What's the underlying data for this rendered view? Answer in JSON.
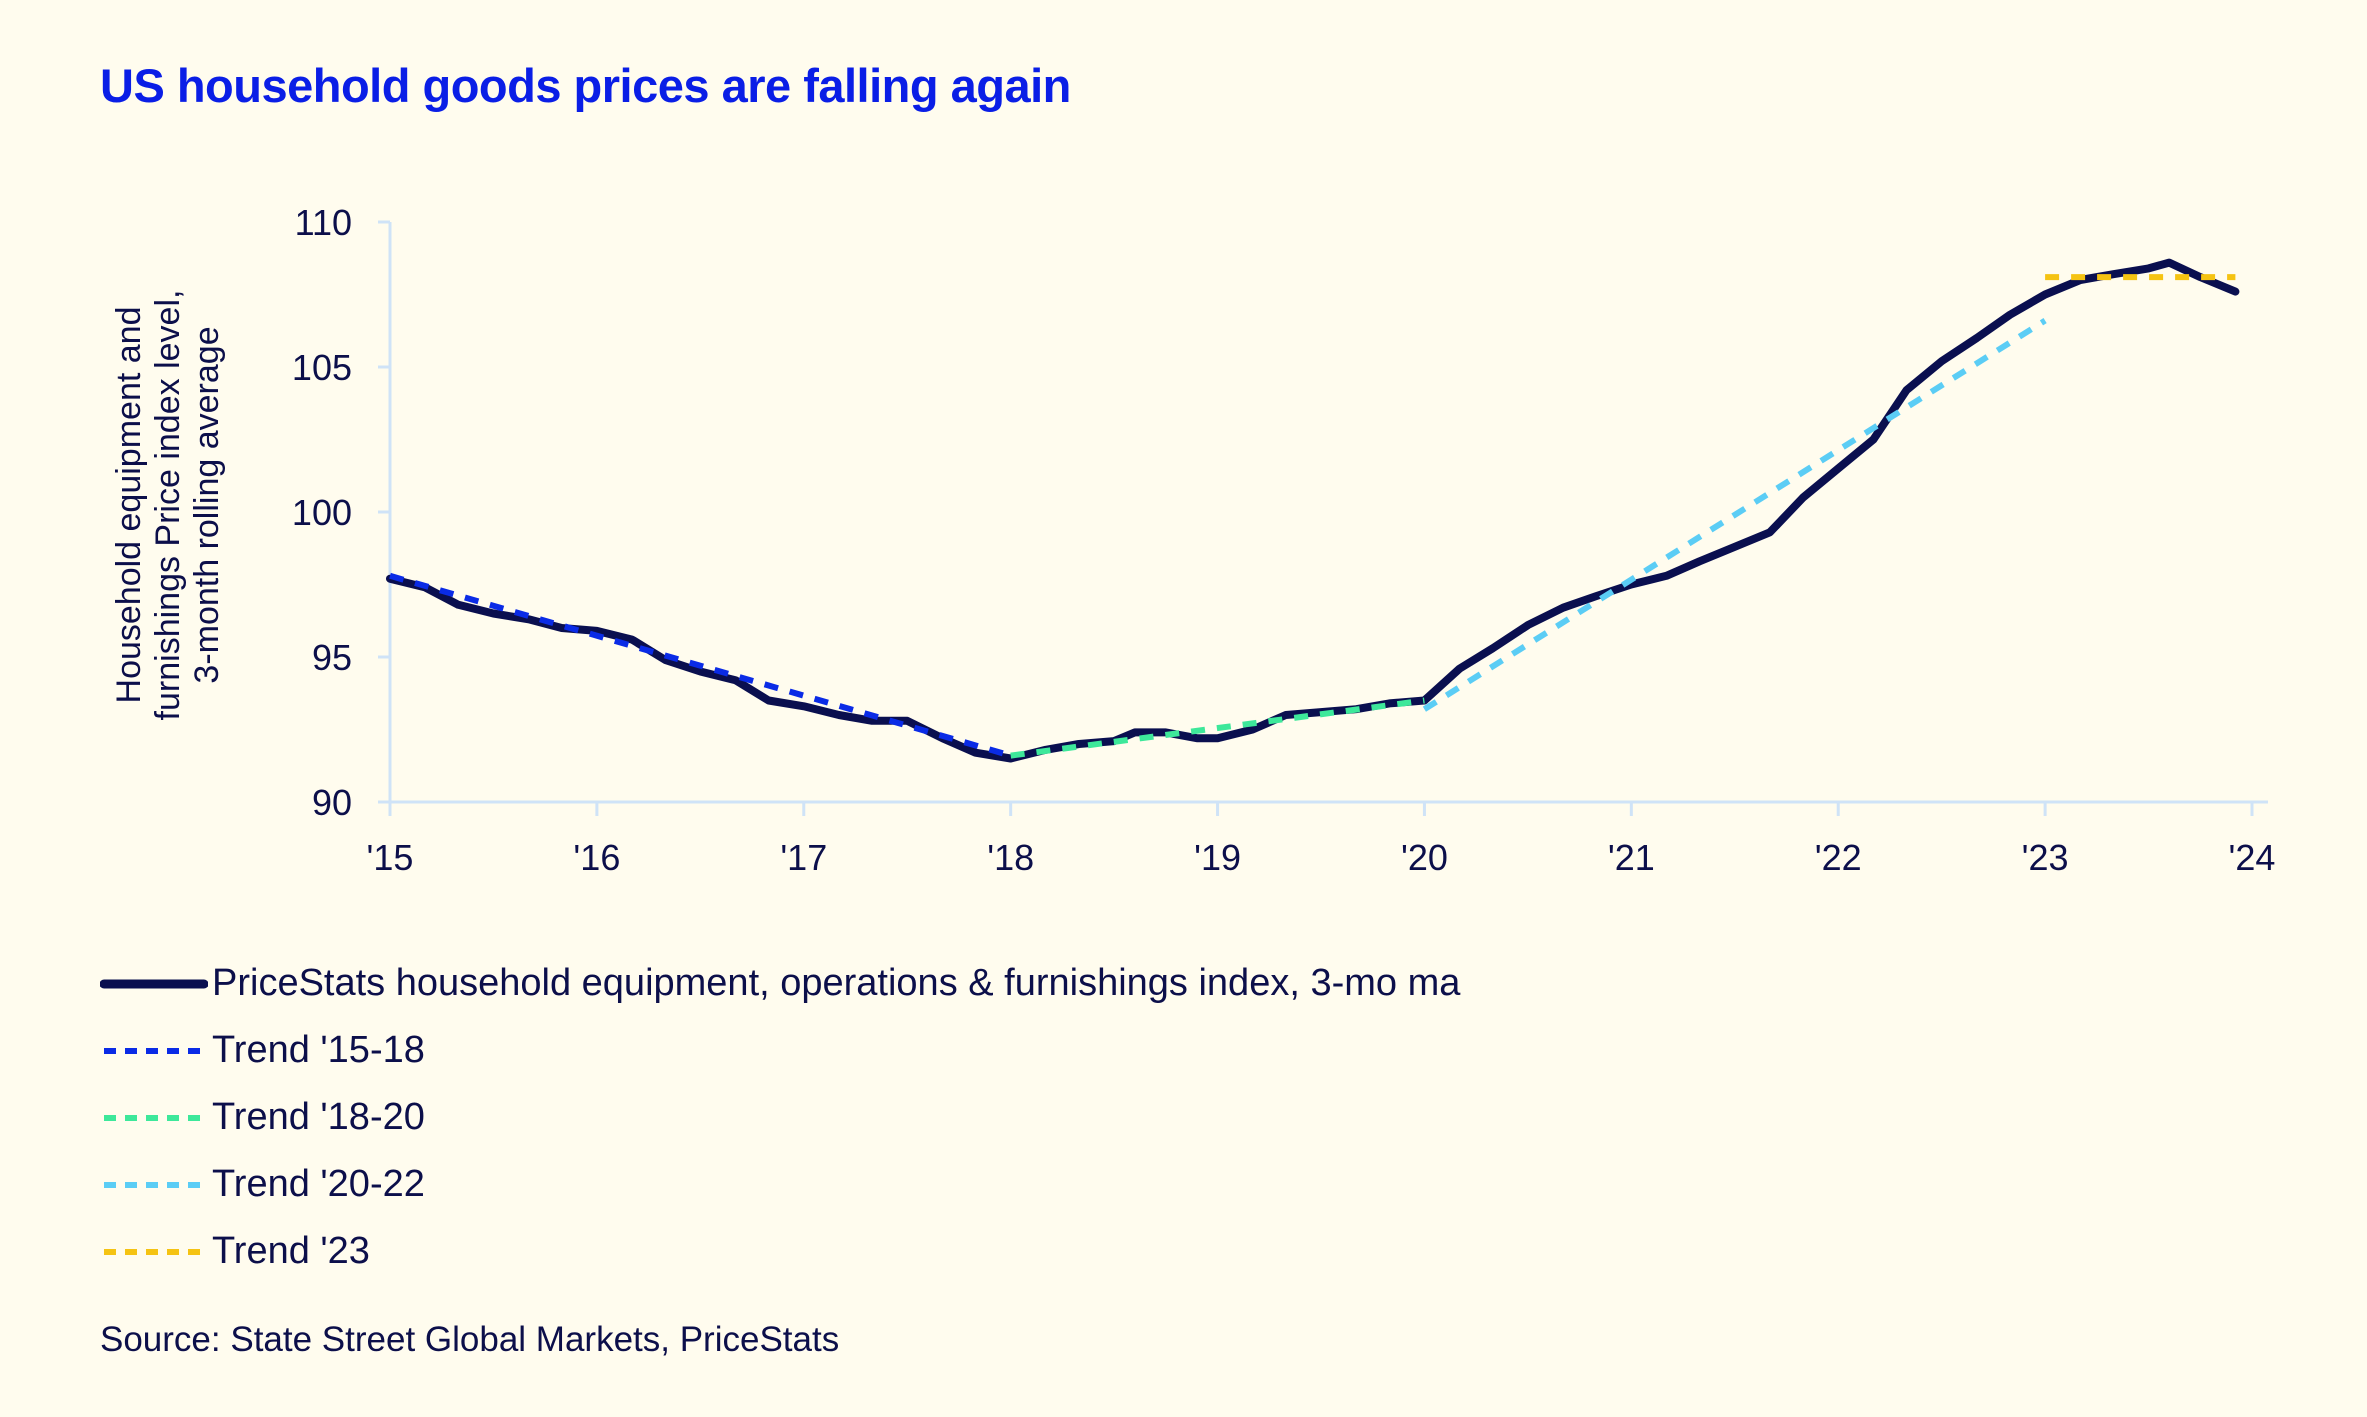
{
  "chart_data": {
    "type": "line",
    "title": "US household goods prices are falling again",
    "xlabel": "",
    "ylabel": "Household equipment and furnishings Price index level, 3-month rolling average",
    "ylabel_lines": [
      "Household equipment and",
      "furnishings Price index level,",
      "3-month rolling average"
    ],
    "xlim": [
      2015,
      2024
    ],
    "ylim": [
      90,
      110
    ],
    "yticks": [
      90,
      95,
      100,
      105,
      110
    ],
    "xticks": [
      2015,
      2016,
      2017,
      2018,
      2019,
      2020,
      2021,
      2022,
      2023,
      2024
    ],
    "xtick_labels": [
      "'15",
      "'16",
      "'17",
      "'18",
      "'19",
      "'20",
      "'21",
      "'22",
      "'23",
      "'24"
    ],
    "grid": false,
    "legend_position": "bottom-left",
    "series": [
      {
        "name": "PriceStats household equipment, operations & furnishings index, 3-mo ma",
        "style": "solid",
        "color": "#0a0f4f",
        "x": [
          2015.0,
          2015.17,
          2015.33,
          2015.5,
          2015.67,
          2015.83,
          2016.0,
          2016.17,
          2016.33,
          2016.5,
          2016.67,
          2016.83,
          2017.0,
          2017.17,
          2017.33,
          2017.5,
          2017.67,
          2017.83,
          2018.0,
          2018.17,
          2018.33,
          2018.5,
          2018.6,
          2018.75,
          2018.9,
          2019.0,
          2019.17,
          2019.33,
          2019.5,
          2019.67,
          2019.83,
          2020.0,
          2020.17,
          2020.33,
          2020.5,
          2020.67,
          2020.83,
          2021.0,
          2021.17,
          2021.33,
          2021.5,
          2021.67,
          2021.83,
          2022.0,
          2022.17,
          2022.33,
          2022.5,
          2022.67,
          2022.83,
          2023.0,
          2023.17,
          2023.33,
          2023.5,
          2023.6,
          2023.75,
          2023.92
        ],
        "values": [
          97.7,
          97.4,
          96.8,
          96.5,
          96.3,
          96.0,
          95.9,
          95.6,
          94.9,
          94.5,
          94.2,
          93.5,
          93.3,
          93.0,
          92.8,
          92.8,
          92.2,
          91.7,
          91.5,
          91.8,
          92.0,
          92.1,
          92.4,
          92.4,
          92.2,
          92.2,
          92.5,
          93.0,
          93.1,
          93.2,
          93.4,
          93.5,
          94.6,
          95.3,
          96.1,
          96.7,
          97.1,
          97.5,
          97.8,
          98.3,
          98.8,
          99.3,
          100.5,
          101.5,
          102.5,
          104.2,
          105.2,
          106.0,
          106.8,
          107.5,
          108.0,
          108.2,
          108.4,
          108.6,
          108.1,
          107.6
        ]
      },
      {
        "name": "Trend '15-18",
        "style": "dashed",
        "color": "#0a2be6",
        "x": [
          2015.0,
          2018.0
        ],
        "values": [
          97.8,
          91.6
        ]
      },
      {
        "name": "Trend '18-20",
        "style": "dashed",
        "color": "#3de89a",
        "x": [
          2018.0,
          2020.0
        ],
        "values": [
          91.6,
          93.5
        ]
      },
      {
        "name": "Trend '20-22",
        "style": "dashed",
        "color": "#5bcdf5",
        "x": [
          2020.0,
          2023.0
        ],
        "values": [
          93.2,
          106.6
        ]
      },
      {
        "name": "Trend '23",
        "style": "dashed",
        "color": "#f5c312",
        "x": [
          2023.0,
          2023.92
        ],
        "values": [
          108.1,
          108.1
        ]
      }
    ],
    "source": "Source: State Street Global Markets, PriceStats"
  },
  "colors": {
    "background": "#fffcee",
    "title": "#0a1ee6",
    "axis": "#cfe3f7",
    "text": "#0c0f4a"
  }
}
